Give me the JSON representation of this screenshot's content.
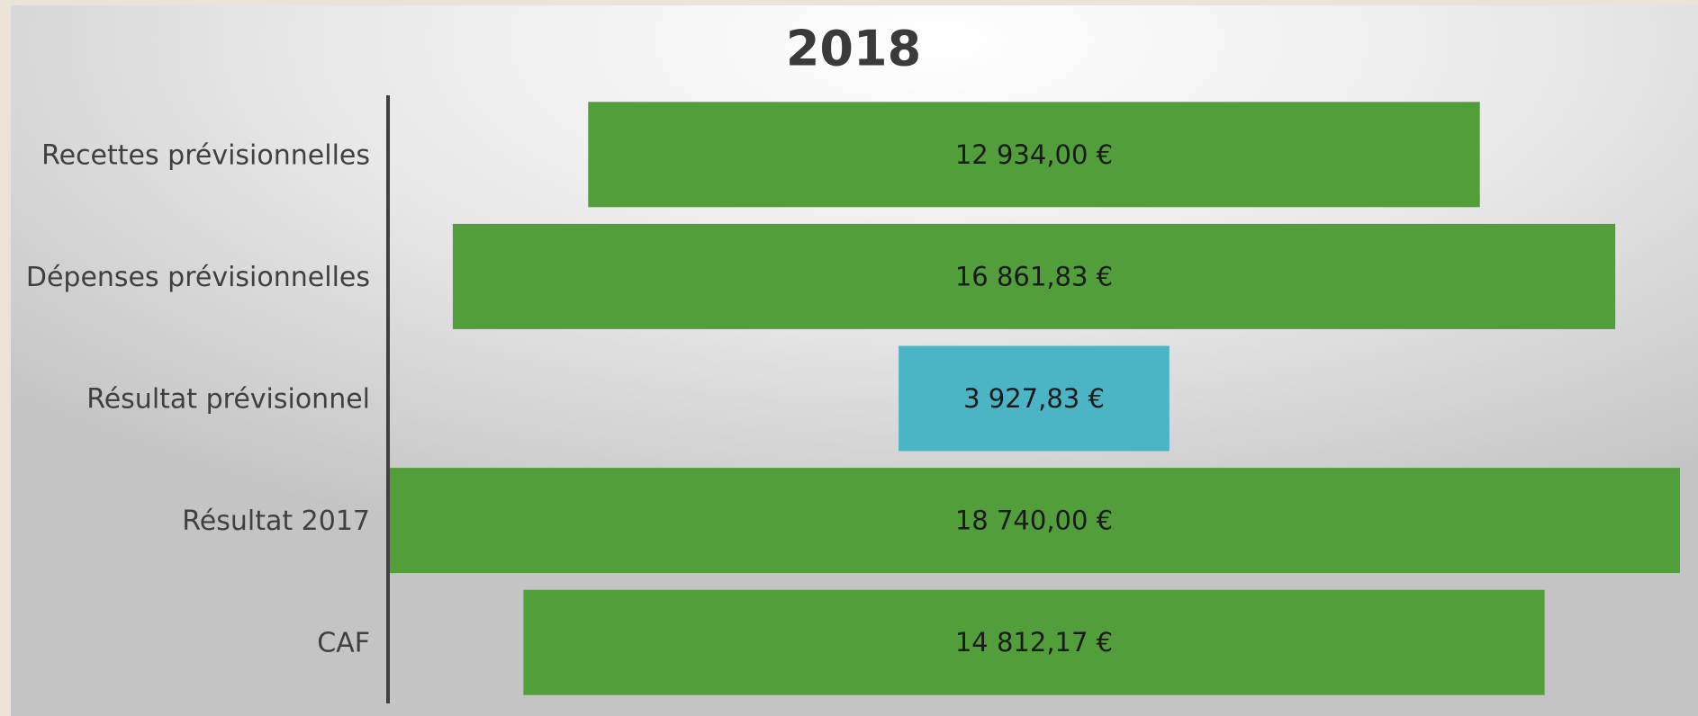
{
  "chart_data": {
    "type": "funnel",
    "title": "2018",
    "categories": [
      "Recettes prévisionnelles",
      "Dépenses prévisionnelles",
      "Résultat prévisionnel",
      "Résultat 2017",
      "CAF"
    ],
    "values": [
      12934.0,
      16861.83,
      3927.83,
      18740.0,
      14812.17
    ],
    "value_labels": [
      "12 934,00 €",
      "16 861,83 €",
      "3 927,83 €",
      "18 740,00 €",
      "14 812,17 €"
    ],
    "colors": [
      "#529e3a",
      "#529e3a",
      "#4bb5c6",
      "#529e3a",
      "#529e3a"
    ]
  }
}
